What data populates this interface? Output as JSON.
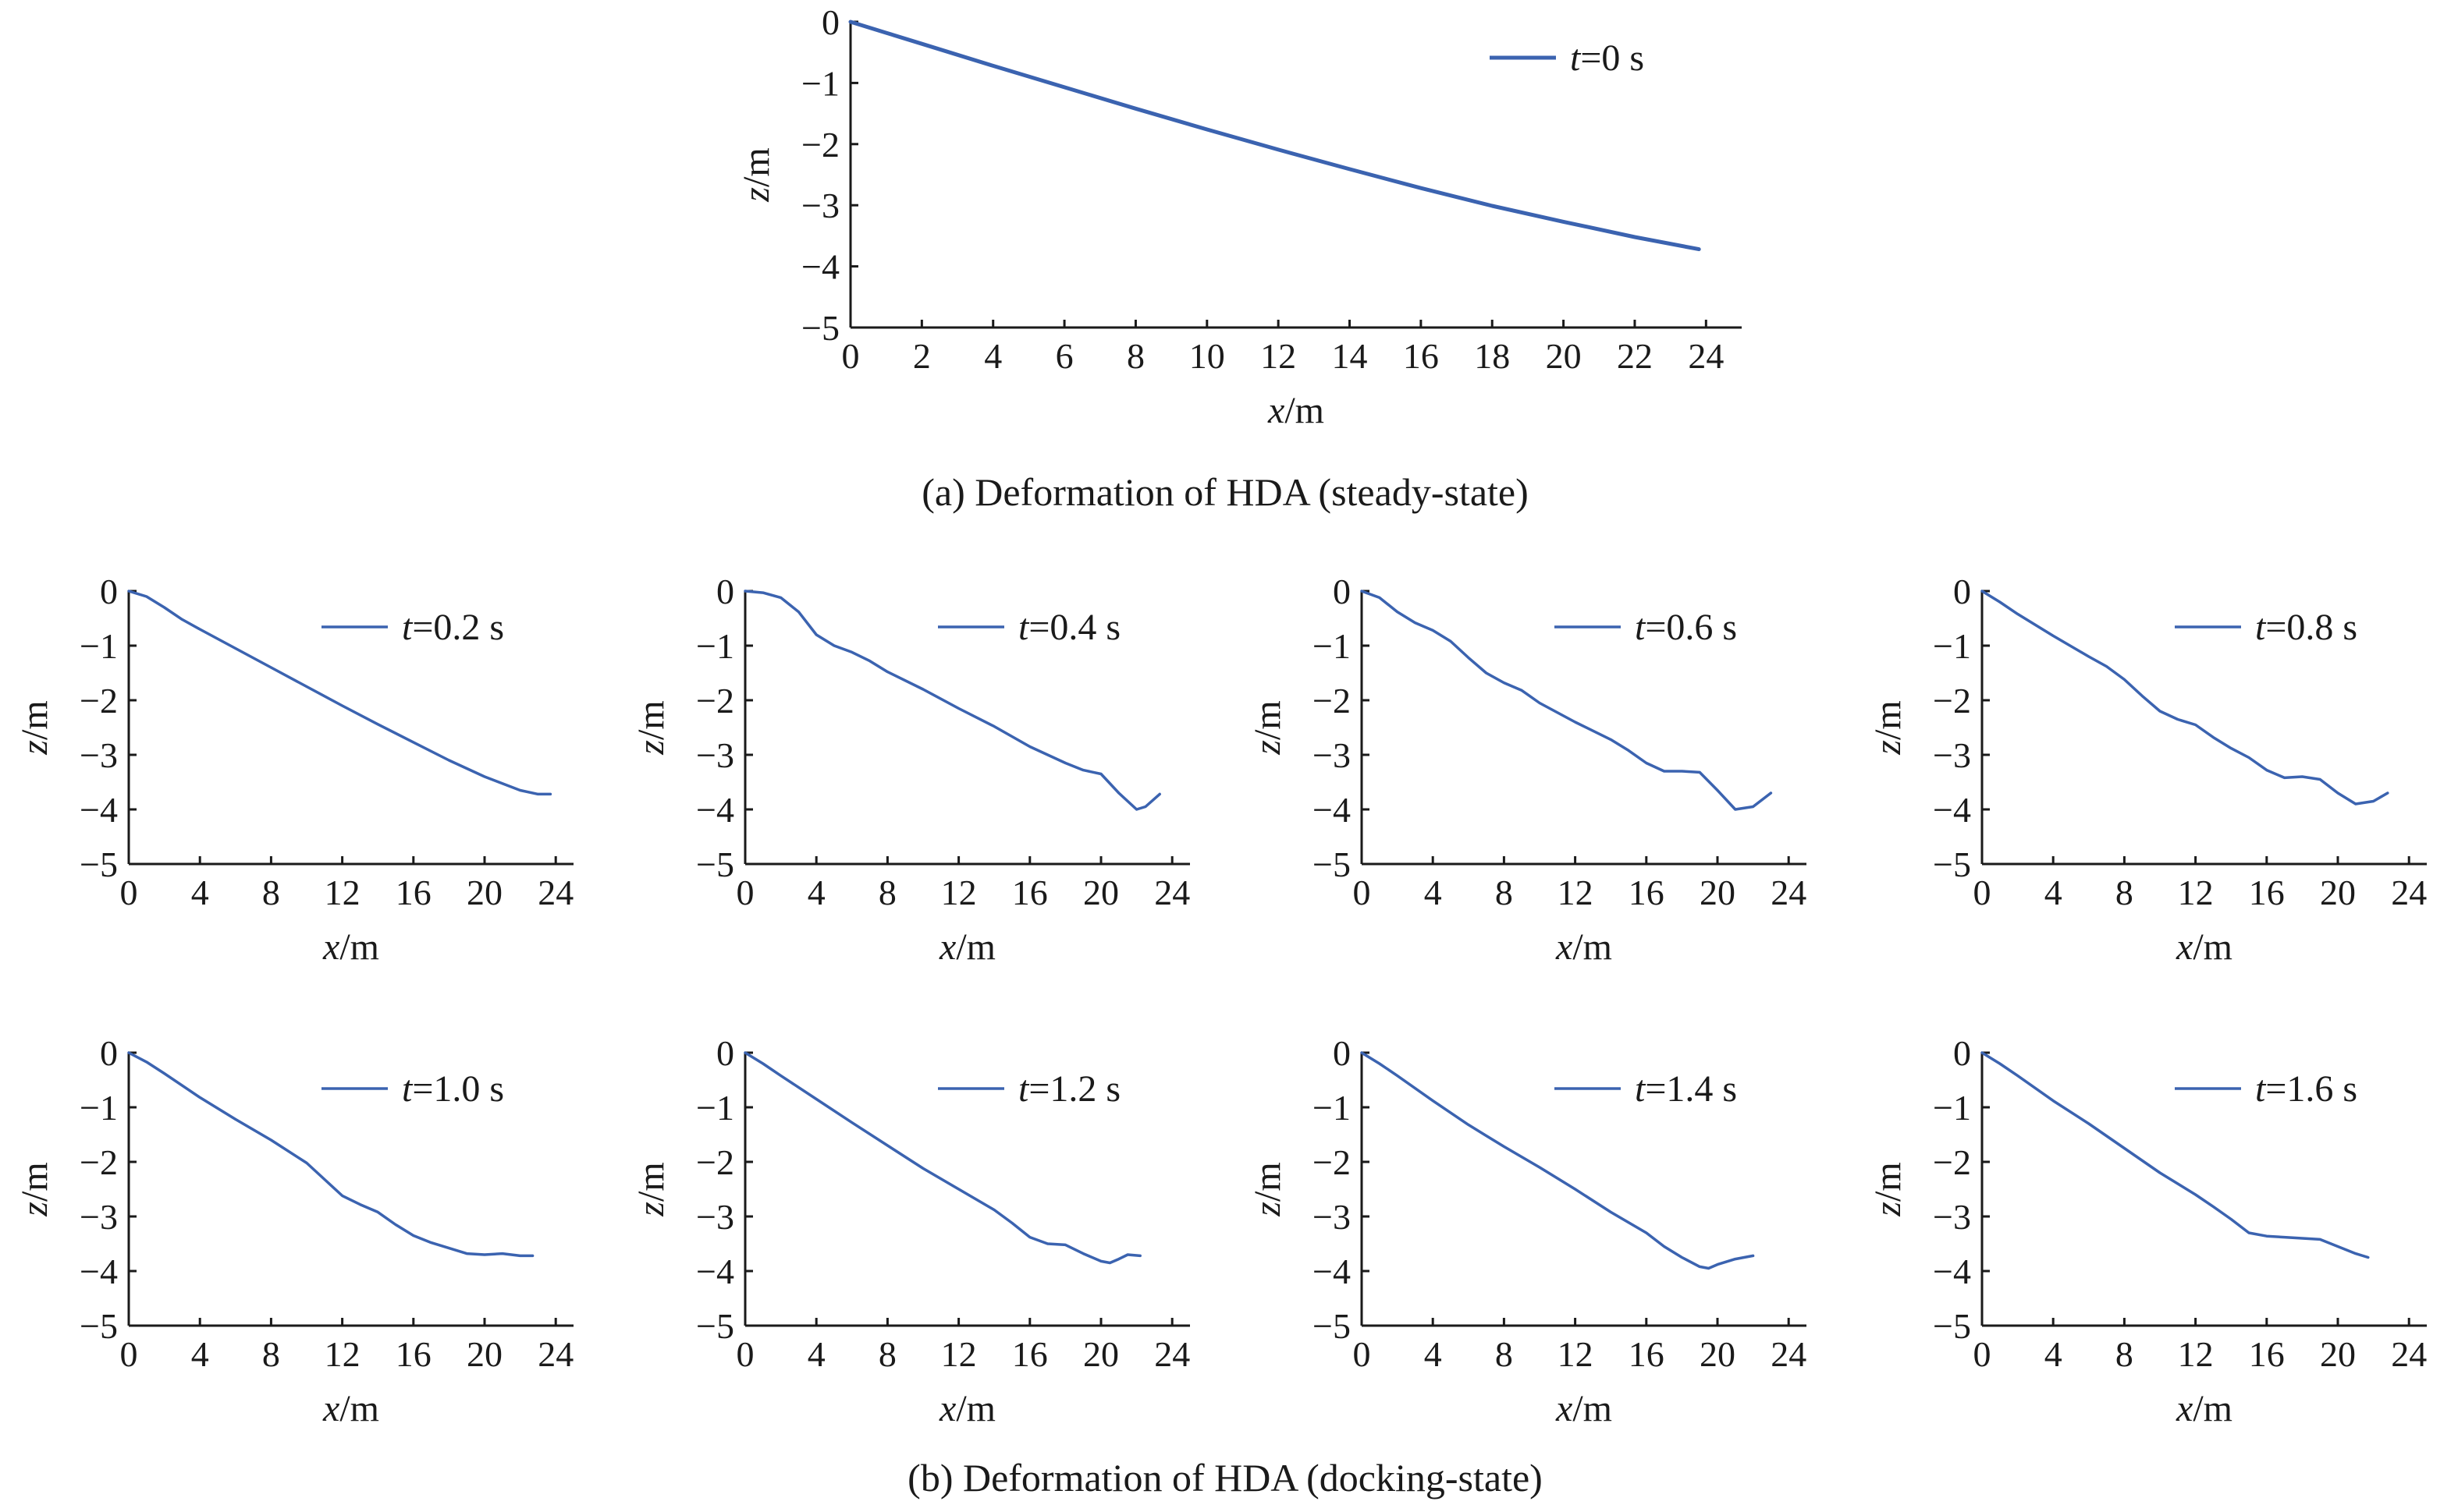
{
  "captions": {
    "a": "(a) Deformation of HDA (steady-state)",
    "b": "(b) Deformation of HDA (docking-state)"
  },
  "axis_labels": {
    "x_var": "x",
    "x_unit": "/m",
    "y_var": "z",
    "y_unit": "/m"
  },
  "line_color": "#3b63b0",
  "chart_data": [
    {
      "type": "line",
      "panel": "a",
      "legend": {
        "var": "t",
        "text": "=0 s"
      },
      "xlabel": "x/m",
      "ylabel": "z/m",
      "xlim": [
        0,
        25
      ],
      "ylim": [
        -5,
        0
      ],
      "xticks": [
        0,
        2,
        4,
        6,
        8,
        10,
        12,
        14,
        16,
        18,
        20,
        22,
        24
      ],
      "yticks": [
        0,
        -1,
        -2,
        -3,
        -4,
        -5
      ],
      "legend_position": "top-right",
      "x": [
        0,
        1,
        2,
        4,
        6,
        8,
        10,
        12,
        14,
        16,
        18,
        20,
        22,
        23.8
      ],
      "y": [
        0,
        -0.18,
        -0.36,
        -0.72,
        -1.07,
        -1.42,
        -1.76,
        -2.09,
        -2.41,
        -2.72,
        -3.01,
        -3.27,
        -3.52,
        -3.72
      ]
    },
    {
      "type": "line",
      "panel": "b",
      "legend": {
        "var": "t",
        "text": "=0.2 s"
      },
      "xlabel": "x/m",
      "ylabel": "z/m",
      "xlim": [
        0,
        25
      ],
      "ylim": [
        -5,
        0
      ],
      "xticks": [
        0,
        4,
        8,
        12,
        16,
        20,
        24
      ],
      "yticks": [
        0,
        -1,
        -2,
        -3,
        -4,
        -5
      ],
      "legend_position": "top-right",
      "x": [
        0,
        1,
        2,
        3,
        4,
        6,
        8,
        10,
        12,
        14,
        16,
        18,
        20,
        22,
        23,
        23.7
      ],
      "y": [
        0,
        -0.1,
        -0.3,
        -0.52,
        -0.7,
        -1.05,
        -1.4,
        -1.75,
        -2.1,
        -2.44,
        -2.77,
        -3.1,
        -3.4,
        -3.65,
        -3.72,
        -3.72
      ]
    },
    {
      "type": "line",
      "panel": "b",
      "legend": {
        "var": "t",
        "text": "=0.4 s"
      },
      "xlabel": "x/m",
      "ylabel": "z/m",
      "xlim": [
        0,
        25
      ],
      "ylim": [
        -5,
        0
      ],
      "xticks": [
        0,
        4,
        8,
        12,
        16,
        20,
        24
      ],
      "yticks": [
        0,
        -1,
        -2,
        -3,
        -4,
        -5
      ],
      "legend_position": "top-right",
      "x": [
        0,
        1,
        2,
        3,
        4,
        5,
        6,
        7,
        8,
        10,
        12,
        14,
        16,
        17,
        18,
        19,
        20,
        21,
        22,
        22.5,
        23.3
      ],
      "y": [
        0,
        -0.03,
        -0.12,
        -0.38,
        -0.8,
        -1.0,
        -1.12,
        -1.28,
        -1.48,
        -1.8,
        -2.15,
        -2.48,
        -2.85,
        -3.0,
        -3.15,
        -3.28,
        -3.35,
        -3.7,
        -4.0,
        -3.95,
        -3.72
      ]
    },
    {
      "type": "line",
      "panel": "b",
      "legend": {
        "var": "t",
        "text": "=0.6 s"
      },
      "xlabel": "x/m",
      "ylabel": "z/m",
      "xlim": [
        0,
        25
      ],
      "ylim": [
        -5,
        0
      ],
      "xticks": [
        0,
        4,
        8,
        12,
        16,
        20,
        24
      ],
      "yticks": [
        0,
        -1,
        -2,
        -3,
        -4,
        -5
      ],
      "legend_position": "top-right",
      "x": [
        0,
        1,
        2,
        3,
        4,
        5,
        6,
        7,
        8,
        9,
        10,
        12,
        14,
        15,
        16,
        17,
        18,
        19,
        20,
        21,
        22,
        23
      ],
      "y": [
        0,
        -0.12,
        -0.38,
        -0.58,
        -0.72,
        -0.92,
        -1.22,
        -1.5,
        -1.68,
        -1.82,
        -2.05,
        -2.4,
        -2.72,
        -2.92,
        -3.15,
        -3.3,
        -3.3,
        -3.32,
        -3.65,
        -4.0,
        -3.95,
        -3.7
      ]
    },
    {
      "type": "line",
      "panel": "b",
      "legend": {
        "var": "t",
        "text": "=0.8 s"
      },
      "xlabel": "x/m",
      "ylabel": "z/m",
      "xlim": [
        0,
        25
      ],
      "ylim": [
        -5,
        0
      ],
      "xticks": [
        0,
        4,
        8,
        12,
        16,
        20,
        24
      ],
      "yticks": [
        0,
        -1,
        -2,
        -3,
        -4,
        -5
      ],
      "legend_position": "top-right",
      "x": [
        0,
        1,
        2,
        4,
        6,
        7,
        8,
        9,
        10,
        11,
        12,
        13,
        14,
        15,
        16,
        17,
        18,
        19,
        20,
        21,
        22,
        22.8
      ],
      "y": [
        0,
        -0.2,
        -0.42,
        -0.82,
        -1.2,
        -1.38,
        -1.62,
        -1.92,
        -2.2,
        -2.35,
        -2.45,
        -2.68,
        -2.88,
        -3.05,
        -3.28,
        -3.42,
        -3.4,
        -3.45,
        -3.7,
        -3.9,
        -3.85,
        -3.7
      ]
    },
    {
      "type": "line",
      "panel": "b",
      "legend": {
        "var": "t",
        "text": "=1.0 s"
      },
      "xlabel": "x/m",
      "ylabel": "z/m",
      "xlim": [
        0,
        25
      ],
      "ylim": [
        -5,
        0
      ],
      "xticks": [
        0,
        4,
        8,
        12,
        16,
        20,
        24
      ],
      "yticks": [
        0,
        -1,
        -2,
        -3,
        -4,
        -5
      ],
      "legend_position": "top-right",
      "x": [
        0,
        1,
        2,
        4,
        6,
        8,
        10,
        11,
        12,
        13,
        14,
        15,
        16,
        17,
        18,
        19,
        20,
        21,
        22,
        22.7
      ],
      "y": [
        0,
        -0.17,
        -0.38,
        -0.82,
        -1.22,
        -1.6,
        -2.02,
        -2.32,
        -2.62,
        -2.78,
        -2.92,
        -3.15,
        -3.35,
        -3.48,
        -3.58,
        -3.68,
        -3.7,
        -3.68,
        -3.72,
        -3.72
      ]
    },
    {
      "type": "line",
      "panel": "b",
      "legend": {
        "var": "t",
        "text": "=1.2 s"
      },
      "xlabel": "x/m",
      "ylabel": "z/m",
      "xlim": [
        0,
        25
      ],
      "ylim": [
        -5,
        0
      ],
      "xticks": [
        0,
        4,
        8,
        12,
        16,
        20,
        24
      ],
      "yticks": [
        0,
        -1,
        -2,
        -3,
        -4,
        -5
      ],
      "legend_position": "top-right",
      "x": [
        0,
        1,
        2,
        4,
        6,
        8,
        10,
        12,
        14,
        15,
        16,
        17,
        18,
        19,
        20,
        20.5,
        21,
        21.5,
        22.2
      ],
      "y": [
        0,
        -0.2,
        -0.42,
        -0.85,
        -1.28,
        -1.7,
        -2.12,
        -2.5,
        -2.88,
        -3.12,
        -3.38,
        -3.5,
        -3.52,
        -3.68,
        -3.82,
        -3.85,
        -3.78,
        -3.7,
        -3.72
      ]
    },
    {
      "type": "line",
      "panel": "b",
      "legend": {
        "var": "t",
        "text": "=1.4 s"
      },
      "xlabel": "x/m",
      "ylabel": "z/m",
      "xlim": [
        0,
        25
      ],
      "ylim": [
        -5,
        0
      ],
      "xticks": [
        0,
        4,
        8,
        12,
        16,
        20,
        24
      ],
      "yticks": [
        0,
        -1,
        -2,
        -3,
        -4,
        -5
      ],
      "legend_position": "top-right",
      "x": [
        0,
        1,
        2,
        4,
        6,
        8,
        10,
        12,
        14,
        16,
        17,
        18,
        19,
        19.5,
        20,
        21,
        22
      ],
      "y": [
        0,
        -0.2,
        -0.42,
        -0.88,
        -1.32,
        -1.72,
        -2.1,
        -2.5,
        -2.92,
        -3.3,
        -3.55,
        -3.75,
        -3.92,
        -3.95,
        -3.88,
        -3.78,
        -3.72
      ]
    },
    {
      "type": "line",
      "panel": "b",
      "legend": {
        "var": "t",
        "text": "=1.6 s"
      },
      "xlabel": "x/m",
      "ylabel": "z/m",
      "xlim": [
        0,
        25
      ],
      "ylim": [
        -5,
        0
      ],
      "xticks": [
        0,
        4,
        8,
        12,
        16,
        20,
        24
      ],
      "yticks": [
        0,
        -1,
        -2,
        -3,
        -4,
        -5
      ],
      "legend_position": "top-right",
      "x": [
        0,
        1,
        2,
        4,
        6,
        8,
        10,
        12,
        13,
        14,
        15,
        16,
        17,
        18,
        19,
        20,
        21,
        21.7
      ],
      "y": [
        0,
        -0.2,
        -0.42,
        -0.88,
        -1.3,
        -1.75,
        -2.2,
        -2.6,
        -2.82,
        -3.05,
        -3.3,
        -3.36,
        -3.38,
        -3.4,
        -3.42,
        -3.55,
        -3.68,
        -3.75
      ]
    }
  ]
}
